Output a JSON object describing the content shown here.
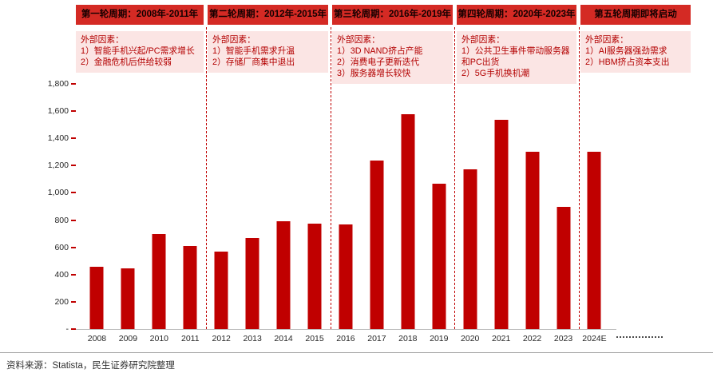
{
  "accent_color": "#c00000",
  "periods": [
    {
      "title": "第一轮周期：2008年-2011年",
      "factor_label": "外部因素：",
      "factors": [
        "1）智能手机兴起/PC需求增长",
        "2）金融危机后供给较弱"
      ]
    },
    {
      "title": "第二轮周期：2012年-2015年",
      "factor_label": "外部因素：",
      "factors": [
        "1）智能手机需求升温",
        "2）存储厂商集中退出"
      ]
    },
    {
      "title": "第三轮周期：2016年-2019年",
      "factor_label": "外部因素：",
      "factors": [
        "1）3D NAND挤占产能",
        "2）消费电子更新迭代",
        "3）服务器增长较快"
      ]
    },
    {
      "title": "第四轮周期：2020年-2023年",
      "factor_label": "外部因素：",
      "factors": [
        "1）公共卫生事件带动服务器和PC出货",
        "2）5G手机换机潮"
      ]
    },
    {
      "title": "第五轮周期即将启动",
      "factor_label": "外部因素：",
      "factors": [
        "1）AI服务器强劲需求",
        "2）HBM挤占资本支出"
      ]
    }
  ],
  "chart_data": {
    "type": "bar",
    "title": "",
    "xlabel": "",
    "ylabel": "",
    "categories": [
      "2008",
      "2009",
      "2010",
      "2011",
      "2012",
      "2013",
      "2014",
      "2015",
      "2016",
      "2017",
      "2018",
      "2019",
      "2020",
      "2021",
      "2022",
      "2023",
      "2024E"
    ],
    "values": [
      460,
      445,
      700,
      610,
      570,
      670,
      790,
      775,
      770,
      1240,
      1580,
      1065,
      1175,
      1535,
      1300,
      895,
      1300
    ],
    "ylim": [
      0,
      1800
    ],
    "ytick_step": 200,
    "ytick_labels": [
      "-",
      "200",
      "400",
      "600",
      "800",
      "1,000",
      "1,200",
      "1,400",
      "1,600",
      "1,800"
    ],
    "bar_color": "#c00000",
    "separators_after": [
      "2011",
      "2015",
      "2019",
      "2023"
    ],
    "grid": false,
    "legend": false
  },
  "source": "资料来源：Statista，民生证券研究院整理"
}
